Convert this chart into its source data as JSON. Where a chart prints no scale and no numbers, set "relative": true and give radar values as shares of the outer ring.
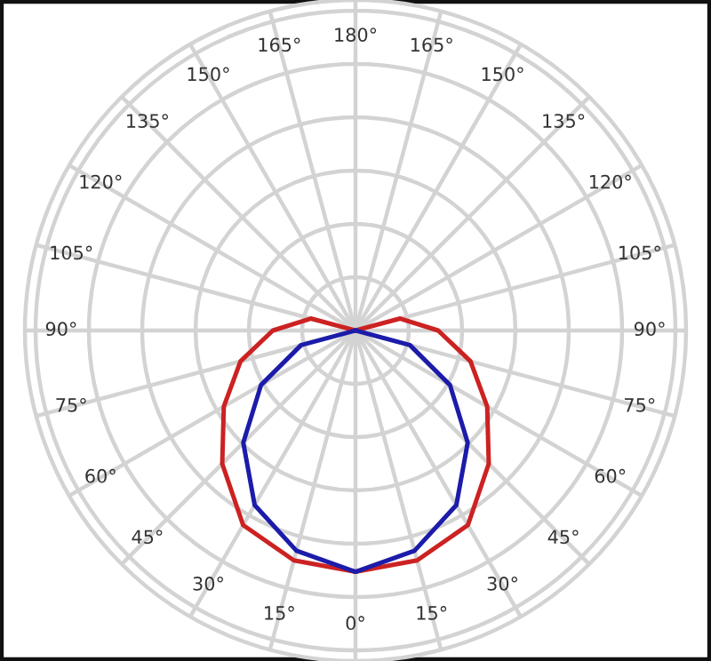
{
  "chart_data": {
    "type": "radar",
    "relative": true,
    "grid": true,
    "line_style": "solid",
    "marker": "none",
    "categories": [
      "180°",
      "165°",
      "150°",
      "135°",
      "120°",
      "105°",
      "90°",
      "75°",
      "60°",
      "45°",
      "30°",
      "15°",
      "0°",
      "15°",
      "30°",
      "45°",
      "60°",
      "75°",
      "90°",
      "105°",
      "120°",
      "135°",
      "150°",
      "165°"
    ],
    "series": [
      {
        "color": "#cc2222",
        "values": [
          0,
          0,
          0,
          0,
          0,
          0.14,
          0.25,
          0.36,
          0.46,
          0.57,
          0.68,
          0.72,
          0.73,
          0.72,
          0.68,
          0.57,
          0.46,
          0.36,
          0.25,
          0.14,
          0,
          0,
          0,
          0
        ]
      },
      {
        "color": "#1c1caa",
        "values": [
          0,
          0,
          0,
          0,
          0,
          0,
          0,
          0.17,
          0.33,
          0.48,
          0.61,
          0.69,
          0.73,
          0.69,
          0.61,
          0.48,
          0.33,
          0.17,
          0,
          0,
          0,
          0,
          0,
          0
        ]
      }
    ]
  }
}
